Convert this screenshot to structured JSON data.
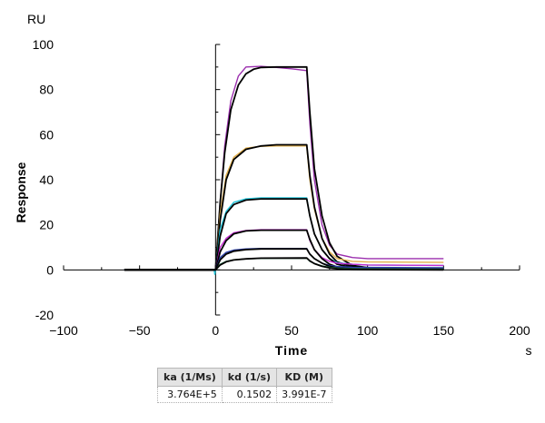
{
  "chart_data": {
    "type": "line",
    "xlabel": "Time",
    "ylabel": "Response",
    "y_unit": "RU",
    "x_unit": "s",
    "xlim": [
      -100,
      200
    ],
    "ylim": [
      -20,
      100
    ],
    "x_ticks": [
      -100,
      -50,
      0,
      50,
      100,
      150,
      200
    ],
    "y_ticks": [
      -20,
      0,
      20,
      40,
      60,
      80,
      100
    ],
    "grid": false,
    "legend": "none",
    "data_range": [
      -60,
      150
    ],
    "association_end": 60,
    "series": [
      {
        "color": "#9b2fae",
        "values": [
          [
            -60,
            0
          ],
          [
            -0.5,
            0
          ],
          [
            0,
            0
          ],
          [
            3,
            30
          ],
          [
            6,
            55
          ],
          [
            10,
            75
          ],
          [
            15,
            86
          ],
          [
            20,
            90
          ],
          [
            30,
            90.3
          ],
          [
            40,
            89.8
          ],
          [
            50,
            89.2
          ],
          [
            60,
            88.4
          ],
          [
            62,
            65
          ],
          [
            65,
            40
          ],
          [
            70,
            20
          ],
          [
            75,
            11
          ],
          [
            80,
            7
          ],
          [
            90,
            5.5
          ],
          [
            100,
            5
          ],
          [
            150,
            5
          ]
        ]
      },
      {
        "color": "#000000",
        "values": [
          [
            -60,
            0
          ],
          [
            -0.5,
            0
          ],
          [
            0,
            0
          ],
          [
            3,
            30
          ],
          [
            6,
            52
          ],
          [
            10,
            71
          ],
          [
            15,
            82
          ],
          [
            20,
            87
          ],
          [
            25,
            89
          ],
          [
            30,
            89.8
          ],
          [
            40,
            90
          ],
          [
            60,
            90
          ],
          [
            62,
            70
          ],
          [
            65,
            45
          ],
          [
            70,
            24
          ],
          [
            75,
            12
          ],
          [
            80,
            6
          ],
          [
            90,
            2
          ],
          [
            100,
            1
          ],
          [
            150,
            0.5
          ]
        ]
      },
      {
        "color": "#e3b04b",
        "values": [
          [
            -60,
            0
          ],
          [
            0,
            0
          ],
          [
            3,
            25
          ],
          [
            7,
            42
          ],
          [
            12,
            50
          ],
          [
            20,
            54
          ],
          [
            30,
            54.8
          ],
          [
            40,
            55
          ],
          [
            60,
            55
          ],
          [
            62,
            40
          ],
          [
            65,
            27
          ],
          [
            70,
            14
          ],
          [
            75,
            8
          ],
          [
            80,
            5
          ],
          [
            90,
            3.8
          ],
          [
            100,
            3.5
          ],
          [
            150,
            3.3
          ]
        ]
      },
      {
        "color": "#000000",
        "values": [
          [
            -60,
            0
          ],
          [
            0,
            0
          ],
          [
            3,
            22
          ],
          [
            7,
            40
          ],
          [
            12,
            49
          ],
          [
            20,
            53.5
          ],
          [
            30,
            55
          ],
          [
            40,
            55.5
          ],
          [
            60,
            55.5
          ],
          [
            62,
            42
          ],
          [
            65,
            28
          ],
          [
            70,
            14
          ],
          [
            75,
            7
          ],
          [
            80,
            3.5
          ],
          [
            90,
            1.5
          ],
          [
            100,
            1
          ],
          [
            150,
            0.5
          ]
        ]
      },
      {
        "color": "#22c3d8",
        "values": [
          [
            -60,
            0
          ],
          [
            -1,
            0
          ],
          [
            -0.5,
            -2
          ],
          [
            0,
            0
          ],
          [
            3,
            18
          ],
          [
            7,
            26
          ],
          [
            12,
            30
          ],
          [
            20,
            31.5
          ],
          [
            30,
            32
          ],
          [
            60,
            32
          ],
          [
            62,
            24
          ],
          [
            65,
            16
          ],
          [
            70,
            9
          ],
          [
            75,
            5
          ],
          [
            80,
            3.2
          ],
          [
            90,
            2.5
          ],
          [
            100,
            2.2
          ],
          [
            150,
            2
          ]
        ]
      },
      {
        "color": "#000000",
        "values": [
          [
            -60,
            0
          ],
          [
            0,
            0
          ],
          [
            3,
            15
          ],
          [
            7,
            25
          ],
          [
            12,
            29
          ],
          [
            20,
            31
          ],
          [
            30,
            31.5
          ],
          [
            60,
            31.5
          ],
          [
            62,
            24
          ],
          [
            65,
            16
          ],
          [
            70,
            9
          ],
          [
            75,
            5
          ],
          [
            80,
            2.5
          ],
          [
            90,
            1
          ],
          [
            100,
            0.6
          ],
          [
            150,
            0.3
          ]
        ]
      },
      {
        "color": "#c42ad1",
        "values": [
          [
            -60,
            0
          ],
          [
            0,
            0
          ],
          [
            3,
            10
          ],
          [
            7,
            14
          ],
          [
            12,
            16.5
          ],
          [
            20,
            17.5
          ],
          [
            30,
            17.8
          ],
          [
            60,
            17.8
          ],
          [
            62,
            13
          ],
          [
            65,
            9
          ],
          [
            70,
            5.5
          ],
          [
            75,
            3.8
          ],
          [
            80,
            3
          ],
          [
            90,
            2.5
          ],
          [
            100,
            2.2
          ],
          [
            150,
            2
          ]
        ]
      },
      {
        "color": "#000000",
        "values": [
          [
            -60,
            0
          ],
          [
            0,
            0
          ],
          [
            3,
            8
          ],
          [
            7,
            13
          ],
          [
            12,
            16
          ],
          [
            20,
            17.3
          ],
          [
            30,
            17.6
          ],
          [
            60,
            17.6
          ],
          [
            62,
            13.5
          ],
          [
            65,
            9
          ],
          [
            70,
            5
          ],
          [
            75,
            2.5
          ],
          [
            80,
            1.3
          ],
          [
            90,
            0.6
          ],
          [
            100,
            0.3
          ],
          [
            150,
            0.2
          ]
        ]
      },
      {
        "color": "#2b3fa8",
        "values": [
          [
            -60,
            0
          ],
          [
            0,
            0
          ],
          [
            3,
            5.5
          ],
          [
            7,
            7.8
          ],
          [
            12,
            8.8
          ],
          [
            20,
            9.3
          ],
          [
            30,
            9.5
          ],
          [
            60,
            9.5
          ],
          [
            62,
            7
          ],
          [
            65,
            5
          ],
          [
            70,
            3
          ],
          [
            75,
            2
          ],
          [
            80,
            1.5
          ],
          [
            90,
            1.2
          ],
          [
            100,
            1.1
          ],
          [
            150,
            1
          ]
        ]
      },
      {
        "color": "#000000",
        "values": [
          [
            -60,
            0
          ],
          [
            0,
            0
          ],
          [
            3,
            4.5
          ],
          [
            7,
            7
          ],
          [
            12,
            8.3
          ],
          [
            20,
            9
          ],
          [
            30,
            9.3
          ],
          [
            60,
            9.3
          ],
          [
            62,
            7
          ],
          [
            65,
            5
          ],
          [
            70,
            3
          ],
          [
            75,
            1.6
          ],
          [
            80,
            0.8
          ],
          [
            90,
            0.3
          ],
          [
            100,
            0.2
          ],
          [
            150,
            0.1
          ]
        ]
      },
      {
        "color": "#2e8b57",
        "values": [
          [
            -60,
            0
          ],
          [
            0,
            0
          ],
          [
            3,
            2.5
          ],
          [
            7,
            3.8
          ],
          [
            12,
            4.5
          ],
          [
            20,
            4.9
          ],
          [
            30,
            5.1
          ],
          [
            60,
            5.2
          ],
          [
            62,
            3.8
          ],
          [
            65,
            2.8
          ],
          [
            70,
            1.8
          ],
          [
            75,
            1.2
          ],
          [
            80,
            0.8
          ],
          [
            90,
            0.5
          ],
          [
            100,
            0.4
          ],
          [
            150,
            0.3
          ]
        ]
      },
      {
        "color": "#000000",
        "values": [
          [
            -60,
            0
          ],
          [
            0,
            0
          ],
          [
            3,
            2.2
          ],
          [
            7,
            3.6
          ],
          [
            12,
            4.4
          ],
          [
            20,
            4.9
          ],
          [
            30,
            5.2
          ],
          [
            60,
            5.3
          ],
          [
            62,
            4
          ],
          [
            65,
            2.8
          ],
          [
            70,
            1.6
          ],
          [
            75,
            0.9
          ],
          [
            80,
            0.5
          ],
          [
            90,
            0.2
          ],
          [
            100,
            0.1
          ],
          [
            150,
            0
          ]
        ]
      }
    ]
  },
  "table": {
    "headers": [
      "ka (1/Ms)",
      "kd (1/s)",
      "KD (M)"
    ],
    "rows": [
      [
        "3.764E+5",
        "0.1502",
        "3.991E-7"
      ]
    ]
  }
}
